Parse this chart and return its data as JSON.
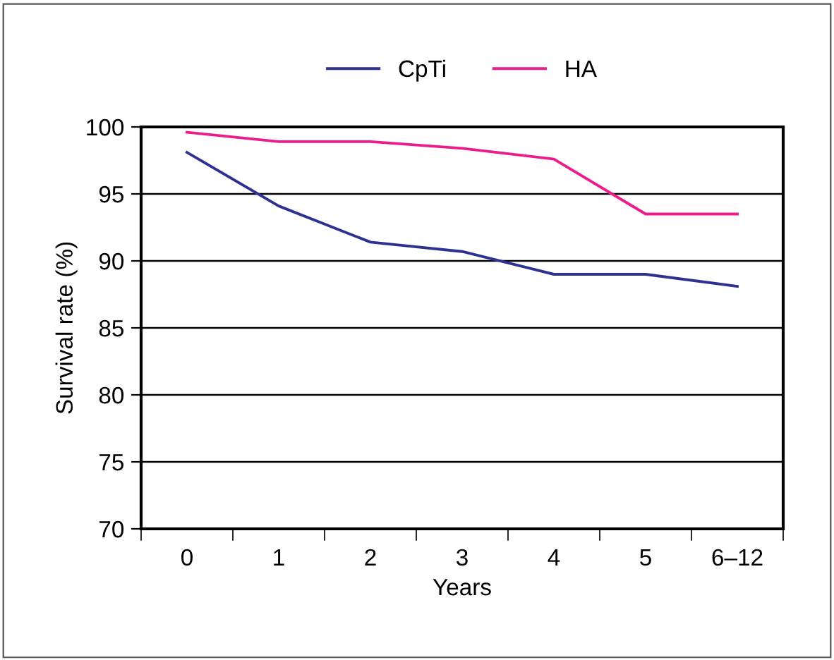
{
  "chart_data": {
    "type": "line",
    "xlabel": "Years",
    "ylabel": "Survival rate (%)",
    "categories": [
      "0",
      "1",
      "2",
      "3",
      "4",
      "5",
      "6–12"
    ],
    "series": [
      {
        "name": "CpTi",
        "color": "#2e3192",
        "values": [
          98.1,
          94.1,
          91.4,
          90.7,
          89.0,
          89.0,
          88.1
        ]
      },
      {
        "name": "HA",
        "color": "#ec1c8c",
        "values": [
          99.6,
          98.9,
          98.9,
          98.4,
          97.6,
          93.5,
          93.5
        ]
      }
    ],
    "ylim": [
      70,
      100
    ],
    "yticks": [
      70,
      75,
      80,
      85,
      90,
      95,
      100
    ],
    "grid": "y",
    "legend": "top",
    "marker": "none",
    "line_style": "solid"
  }
}
